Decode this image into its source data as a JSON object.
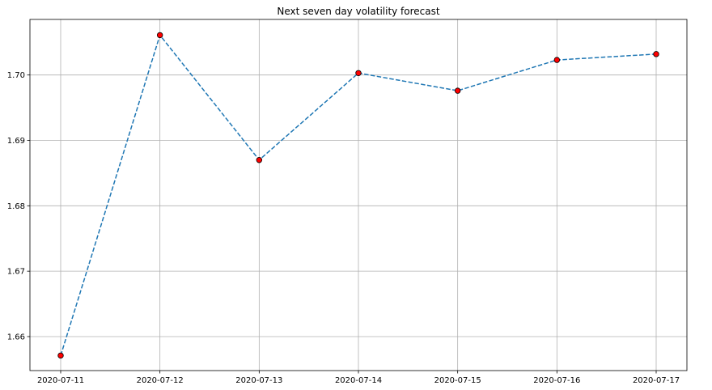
{
  "chart_data": {
    "type": "line",
    "title": "Next seven day volatility forecast",
    "xlabel": "",
    "ylabel": "",
    "x": [
      "2020-07-11",
      "2020-07-12",
      "2020-07-13",
      "2020-07-14",
      "2020-07-15",
      "2020-07-16",
      "2020-07-17"
    ],
    "series": [
      {
        "values": [
          1.6571,
          1.7061,
          1.687,
          1.7003,
          1.6976,
          1.7023,
          1.7032
        ],
        "color": "#1f77b4",
        "line_style": "dashed",
        "marker": "circle",
        "marker_color": "#ff0000",
        "marker_edge_color": "#000000"
      }
    ],
    "ylim": [
      1.6548,
      1.7085
    ],
    "yticks": [
      1.66,
      1.67,
      1.68,
      1.69,
      1.7
    ],
    "ytick_labels": [
      "1.66",
      "1.67",
      "1.68",
      "1.69",
      "1.70"
    ],
    "grid": true,
    "legend": "none"
  }
}
